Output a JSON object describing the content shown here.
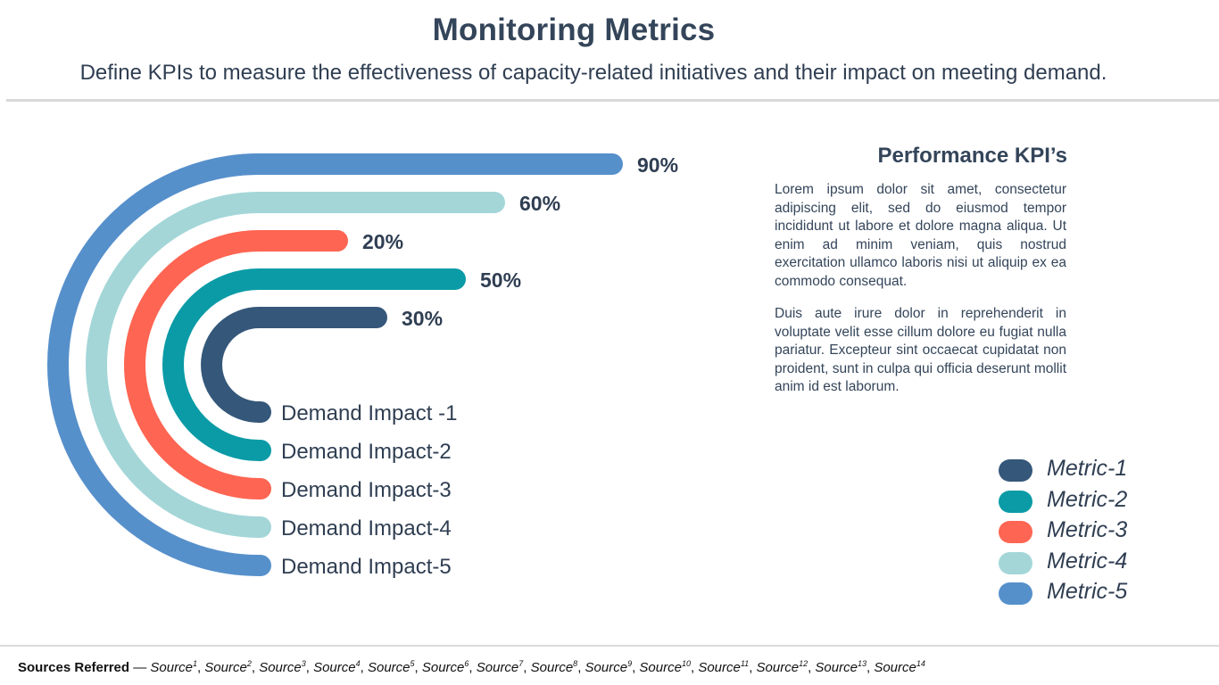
{
  "header": {
    "title": "Monitoring Metrics",
    "subtitle": "Define KPIs to measure the effectiveness of capacity-related initiatives and their impact on meeting demand."
  },
  "kpi": {
    "title": "Performance KPI’s",
    "paragraphs": [
      "Lorem ipsum dolor sit amet, consectetur adipiscing elit, sed do eiusmod tempor incididunt ut labore et dolore magna aliqua. Ut enim ad minim veniam, quis nostrud exercitation ullamco laboris nisi ut aliquip ex ea commodo consequat.",
      "Duis aute irure dolor in reprehenderit in voluptate velit esse cillum dolore eu fugiat nulla pariatur. Excepteur sint occaecat cupidatat non proident, sunt in culpa qui officia deserunt mollit anim id est laborum."
    ]
  },
  "chart_data": {
    "type": "bar",
    "style": "radial-bar",
    "series": [
      {
        "name": "Metric-1",
        "category": "Demand Impact -1",
        "value": 30,
        "value_label": "30%",
        "color": "#34577a"
      },
      {
        "name": "Metric-2",
        "category": "Demand Impact-2",
        "value": 50,
        "value_label": "50%",
        "color": "#0a9ba6"
      },
      {
        "name": "Metric-3",
        "category": "Demand Impact-3",
        "value": 20,
        "value_label": "20%",
        "color": "#fe6552"
      },
      {
        "name": "Metric-4",
        "category": "Demand Impact-4",
        "value": 60,
        "value_label": "60%",
        "color": "#a4d6d8"
      },
      {
        "name": "Metric-5",
        "category": "Demand Impact-5",
        "value": 90,
        "value_label": "90%",
        "color": "#5690cb"
      }
    ],
    "legend_position": "bottom-right"
  },
  "sources": {
    "label": "Sources Referred",
    "dash": " — ",
    "items": [
      {
        "name": "Source",
        "sup": "1"
      },
      {
        "name": "Source",
        "sup": "2"
      },
      {
        "name": "Source",
        "sup": "3"
      },
      {
        "name": "Source",
        "sup": "4"
      },
      {
        "name": "Source",
        "sup": "5"
      },
      {
        "name": "Source",
        "sup": "6"
      },
      {
        "name": "Source",
        "sup": "7"
      },
      {
        "name": "Source",
        "sup": "8"
      },
      {
        "name": "Source",
        "sup": "9"
      },
      {
        "name": "Source",
        "sup": "10"
      },
      {
        "name": "Source",
        "sup": "11"
      },
      {
        "name": "Source",
        "sup": "12"
      },
      {
        "name": "Source",
        "sup": "13"
      },
      {
        "name": "Source",
        "sup": "14"
      }
    ]
  }
}
